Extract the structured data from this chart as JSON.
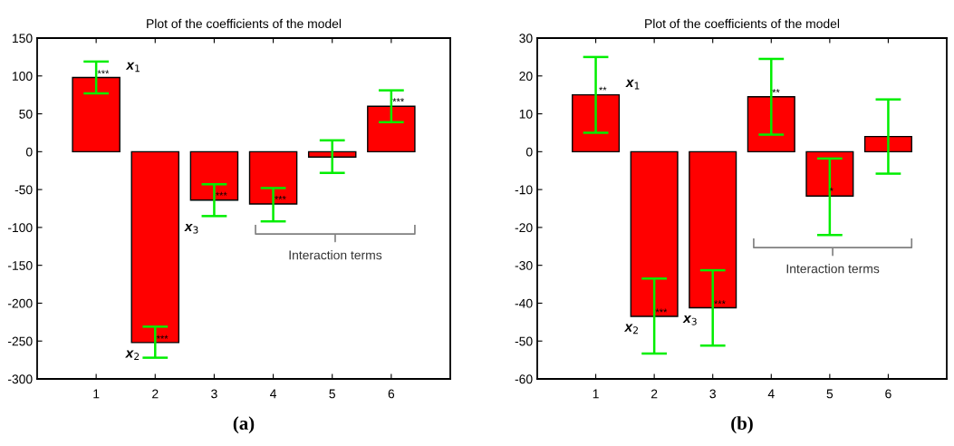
{
  "chart_data": [
    {
      "type": "bar",
      "title": "Plot of the coefficients of the model",
      "x": [
        1,
        2,
        3,
        4,
        5,
        6
      ],
      "xlim": [
        0,
        7
      ],
      "xticks": [
        1,
        2,
        3,
        4,
        5,
        6
      ],
      "ylim": [
        -300,
        150
      ],
      "yticks": [
        -300,
        -250,
        -200,
        -150,
        -100,
        -50,
        0,
        50,
        100,
        150
      ],
      "grid": false,
      "legend": false,
      "series": [
        {
          "color": "#ff0000",
          "values": [
            98,
            -252,
            -64,
            -69,
            -7,
            60
          ],
          "errors": [
            [
              77,
              119
            ],
            [
              -272,
              -231
            ],
            [
              -85,
              -43
            ],
            [
              -92,
              -48
            ],
            [
              -28,
              15
            ],
            [
              39,
              81
            ]
          ]
        }
      ],
      "annotations": [
        "(a)",
        {
          "text": "***",
          "x": 1.12,
          "y": 102
        },
        {
          "text": "***",
          "x": 2.12,
          "y": -248
        },
        {
          "text": "***",
          "x": 3.12,
          "y": -59
        },
        {
          "text": "***",
          "x": 4.12,
          "y": -64
        },
        {
          "text": "***",
          "x": 6.12,
          "y": 65
        },
        {
          "text": "x$_{1}$",
          "x": 1,
          "y": 98
        },
        {
          "text": "x$_{2}$",
          "x": 2,
          "y": -252
        },
        {
          "text": "x$_{3}$",
          "x": 3,
          "y": -85
        },
        "Interaction terms"
      ]
    },
    {
      "type": "bar",
      "title": "Plot of the coefficients of the model",
      "x": [
        1,
        2,
        3,
        4,
        5,
        6
      ],
      "xlim": [
        0,
        7
      ],
      "xticks": [
        1,
        2,
        3,
        4,
        5,
        6
      ],
      "ylim": [
        -60,
        30
      ],
      "yticks": [
        -60,
        -50,
        -40,
        -30,
        -20,
        -10,
        0,
        10,
        20,
        30
      ],
      "grid": false,
      "legend": false,
      "series": [
        {
          "color": "#ff0000",
          "values": [
            15,
            -43.5,
            -41.2,
            14.5,
            -11.7,
            4
          ],
          "errors": [
            [
              5,
              25
            ],
            [
              -53.3,
              -33.5
            ],
            [
              -51.2,
              -31.3
            ],
            [
              4.5,
              24.5
            ],
            [
              -22,
              -1.8
            ],
            [
              -5.8,
              13.8
            ]
          ]
        }
      ],
      "annotations": [
        "(b)",
        {
          "text": "**",
          "x": 1.12,
          "y": 16
        },
        {
          "text": "***",
          "x": 2.12,
          "y": -42.6
        },
        {
          "text": "***",
          "x": 3.12,
          "y": -40.4
        },
        {
          "text": "**",
          "x": 4.08,
          "y": 15.4
        },
        {
          "text": "*",
          "x": 5.03,
          "y": -10.6
        },
        {
          "text": "x$_{1}$",
          "x": 1,
          "y": 15
        },
        {
          "text": "x$_{2}$",
          "x": 2,
          "y": -43.5
        },
        {
          "text": "x$_{3}$",
          "x": 3,
          "y": -41.2
        },
        "Interaction terms"
      ]
    }
  ]
}
